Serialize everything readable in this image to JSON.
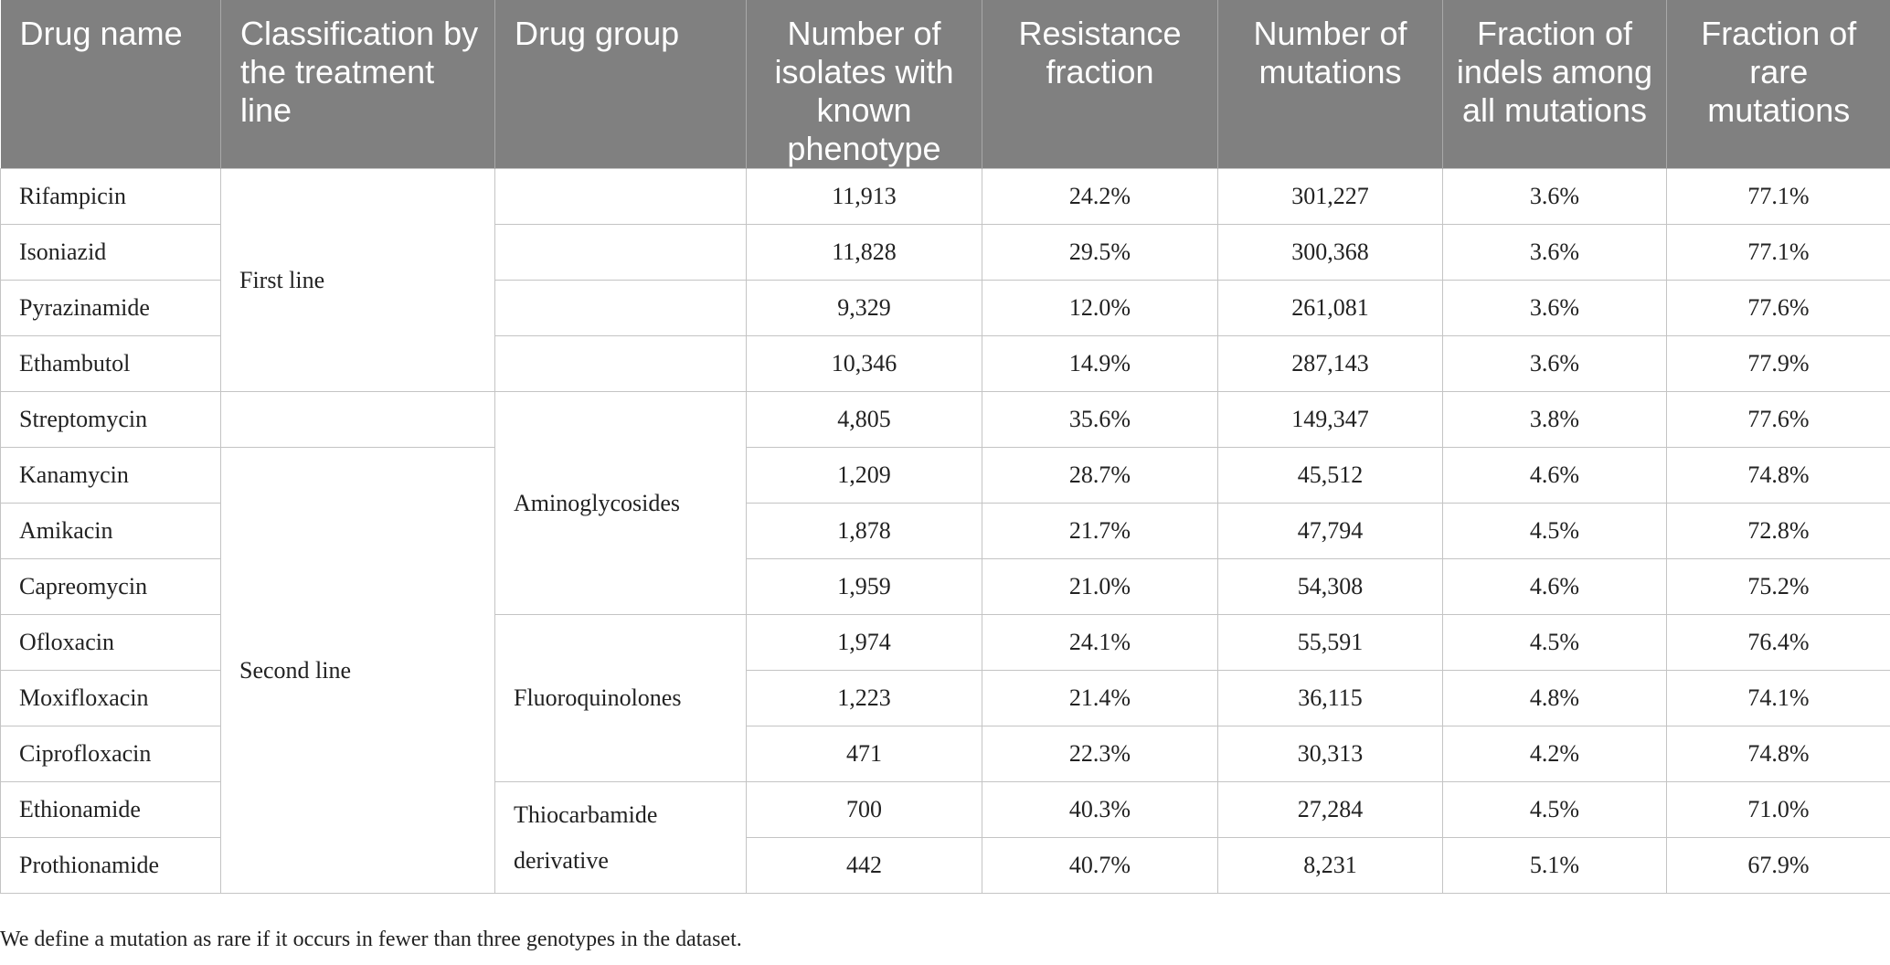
{
  "columns": [
    "Drug name",
    "Classification by the treatment line",
    "Drug group",
    "Number of isolates with known phenotype",
    "Resistance fraction",
    "Number of mutations",
    "Fraction of indels among all mutations",
    "Fraction of rare mutations"
  ],
  "rows": [
    {
      "drug": "Rifampicin",
      "isolates": "11,913",
      "resistance": "24.2%",
      "mutations": "301,227",
      "indels": "3.6%",
      "rare": "77.1%"
    },
    {
      "drug": "Isoniazid",
      "isolates": "11,828",
      "resistance": "29.5%",
      "mutations": "300,368",
      "indels": "3.6%",
      "rare": "77.1%"
    },
    {
      "drug": "Pyrazinamide",
      "isolates": "9,329",
      "resistance": "12.0%",
      "mutations": "261,081",
      "indels": "3.6%",
      "rare": "77.6%"
    },
    {
      "drug": "Ethambutol",
      "isolates": "10,346",
      "resistance": "14.9%",
      "mutations": "287,143",
      "indels": "3.6%",
      "rare": "77.9%"
    },
    {
      "drug": "Streptomycin",
      "isolates": "4,805",
      "resistance": "35.6%",
      "mutations": "149,347",
      "indels": "3.8%",
      "rare": "77.6%"
    },
    {
      "drug": "Kanamycin",
      "isolates": "1,209",
      "resistance": "28.7%",
      "mutations": "45,512",
      "indels": "4.6%",
      "rare": "74.8%"
    },
    {
      "drug": "Amikacin",
      "isolates": "1,878",
      "resistance": "21.7%",
      "mutations": "47,794",
      "indels": "4.5%",
      "rare": "72.8%"
    },
    {
      "drug": "Capreomycin",
      "isolates": "1,959",
      "resistance": "21.0%",
      "mutations": "54,308",
      "indels": "4.6%",
      "rare": "75.2%"
    },
    {
      "drug": "Ofloxacin",
      "isolates": "1,974",
      "resistance": "24.1%",
      "mutations": "55,591",
      "indels": "4.5%",
      "rare": "76.4%"
    },
    {
      "drug": "Moxifloxacin",
      "isolates": "1,223",
      "resistance": "21.4%",
      "mutations": "36,115",
      "indels": "4.8%",
      "rare": "74.1%"
    },
    {
      "drug": "Ciprofloxacin",
      "isolates": "471",
      "resistance": "22.3%",
      "mutations": "30,313",
      "indels": "4.2%",
      "rare": "74.8%"
    },
    {
      "drug": "Ethionamide",
      "isolates": "700",
      "resistance": "40.3%",
      "mutations": "27,284",
      "indels": "4.5%",
      "rare": "71.0%"
    },
    {
      "drug": "Prothionamide",
      "isolates": "442",
      "resistance": "40.7%",
      "mutations": "8,231",
      "indels": "5.1%",
      "rare": "67.9%"
    }
  ],
  "treatment_lines": {
    "first": "First line",
    "second": "Second line"
  },
  "drug_groups": {
    "aminoglycosides": "Aminoglycosides",
    "fluoroquinolones": "Fluoroquinolones",
    "thiocarbamide": "Thiocarbamide derivative"
  },
  "footnote": "We define a mutation as rare if it occurs in fewer than three genotypes in the dataset.",
  "colors": {
    "header_bg": "#808080",
    "header_text": "#ffffff",
    "grid": "#c4c4c4"
  }
}
